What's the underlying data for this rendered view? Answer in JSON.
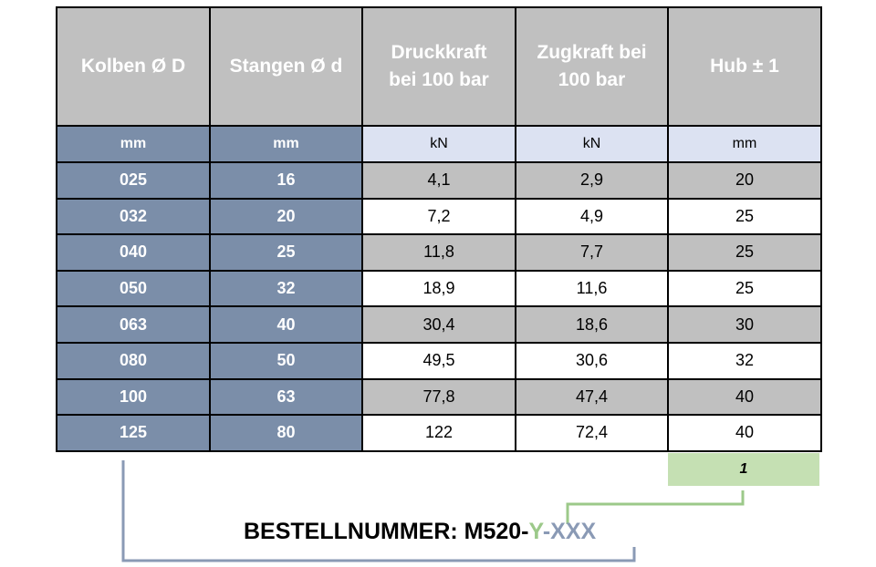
{
  "table": {
    "headers": [
      "Kolben Ø D",
      "Stangen Ø d",
      "Druckkraft bei 100 bar",
      "Zugkraft bei 100 bar",
      "Hub ± 1"
    ],
    "units": [
      "mm",
      "mm",
      "kN",
      "kN",
      "mm"
    ],
    "rows": [
      [
        "025",
        "16",
        "4,1",
        "2,9",
        "20"
      ],
      [
        "032",
        "20",
        "7,2",
        "4,9",
        "25"
      ],
      [
        "040",
        "25",
        "11,8",
        "7,7",
        "25"
      ],
      [
        "050",
        "32",
        "18,9",
        "11,6",
        "25"
      ],
      [
        "063",
        "40",
        "30,4",
        "18,6",
        "30"
      ],
      [
        "080",
        "50",
        "49,5",
        "30,6",
        "32"
      ],
      [
        "100",
        "63",
        "77,8",
        "47,4",
        "40"
      ],
      [
        "125",
        "80",
        "122",
        "72,4",
        "40"
      ]
    ]
  },
  "stroke_code": "1",
  "order": {
    "prefix": "BESTELLNUMMER: M520-",
    "y_part": "Y",
    "dash": "-",
    "x_part": "XXX"
  },
  "colors": {
    "header_bg": "#c0c0c0",
    "blue_cells": "#7b8ea9",
    "unit_light": "#dce2f2",
    "green_box": "#c5e0b3",
    "y_connector": "#9cc98a",
    "x_connector": "#8a9ab5"
  }
}
